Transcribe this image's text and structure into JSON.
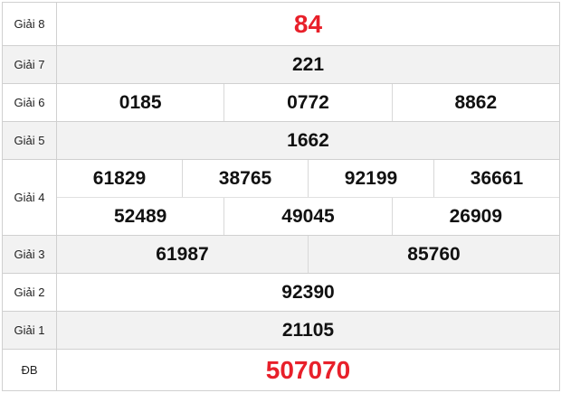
{
  "prizes": [
    {
      "label": "Giải 8",
      "rows": [
        [
          "84"
        ]
      ]
    },
    {
      "label": "Giải 7",
      "rows": [
        [
          "221"
        ]
      ]
    },
    {
      "label": "Giải 6",
      "rows": [
        [
          "0185",
          "0772",
          "8862"
        ]
      ]
    },
    {
      "label": "Giải 5",
      "rows": [
        [
          "1662"
        ]
      ]
    },
    {
      "label": "Giải 4",
      "rows": [
        [
          "61829",
          "38765",
          "92199",
          "36661"
        ],
        [
          "52489",
          "49045",
          "26909"
        ]
      ]
    },
    {
      "label": "Giải 3",
      "rows": [
        [
          "61987",
          "85760"
        ]
      ]
    },
    {
      "label": "Giải 2",
      "rows": [
        [
          "92390"
        ]
      ]
    },
    {
      "label": "Giải 1",
      "rows": [
        [
          "21105"
        ]
      ]
    },
    {
      "label": "ĐB",
      "rows": [
        [
          "507070"
        ]
      ]
    }
  ],
  "colors": {
    "highlight": "#e8202a",
    "alt_row": "#f2f2f2"
  }
}
